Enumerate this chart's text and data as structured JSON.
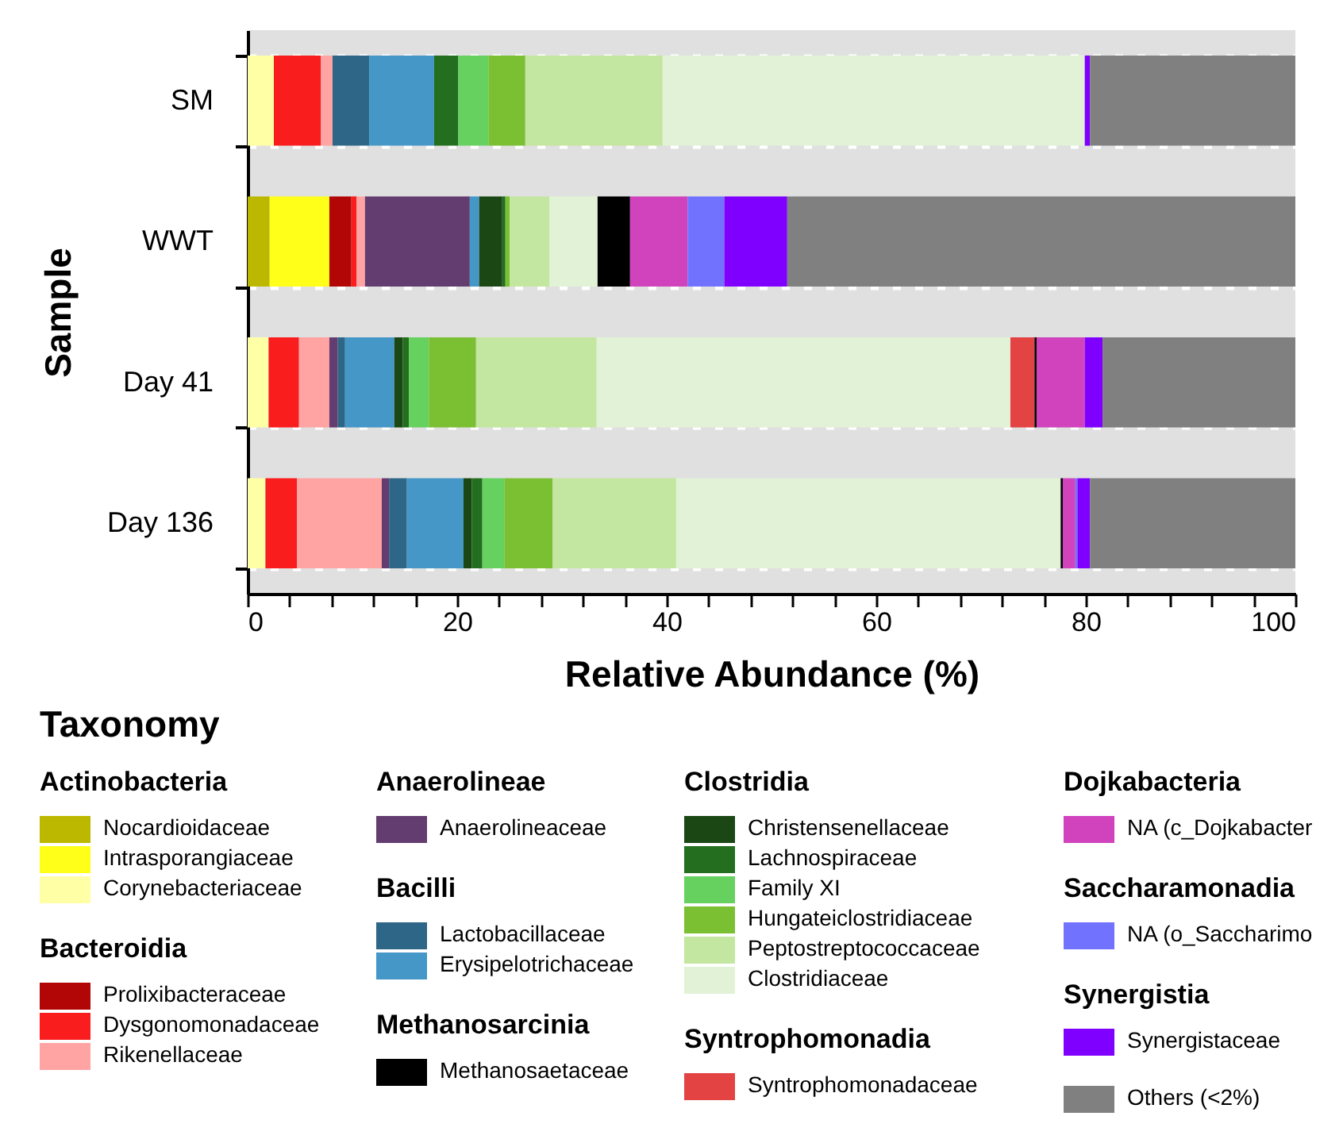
{
  "chart_data": {
    "type": "bar",
    "orientation": "horizontal",
    "stacked": true,
    "xlabel": "Relative Abundance (%)",
    "ylabel": "Sample",
    "legend_title": "Taxonomy",
    "categories": [
      "SM",
      "WWT",
      "Day 41",
      "Day 136"
    ],
    "xlim": [
      0,
      100
    ],
    "xticks": [
      0,
      {
        "value": 4,
        "label": null
      },
      {
        "value": 8,
        "label": null
      },
      {
        "value": 12,
        "label": null
      },
      {
        "value": 16,
        "label": null
      },
      20,
      {
        "value": 24,
        "label": null
      },
      {
        "value": 28,
        "label": null
      },
      {
        "value": 32,
        "label": null
      },
      {
        "value": 36,
        "label": null
      },
      40,
      {
        "value": 44,
        "label": null
      },
      {
        "value": 48,
        "label": null
      },
      {
        "value": 52,
        "label": null
      },
      {
        "value": 56,
        "label": null
      },
      60,
      {
        "value": 64,
        "label": null
      },
      {
        "value": 68,
        "label": null
      },
      {
        "value": 72,
        "label": null
      },
      {
        "value": 76,
        "label": null
      },
      80,
      {
        "value": 84,
        "label": null
      },
      {
        "value": 88,
        "label": null
      },
      {
        "value": 92,
        "label": null
      },
      {
        "value": 96,
        "label": null
      },
      100
    ],
    "grid": "y",
    "legend": "bottom",
    "annotations": [
      "Actinobacteria",
      "Bacteroidia",
      "Anaerolineae",
      "Bacilli",
      "Methanosarcinia",
      "Clostridia",
      "Syntrophomonadia",
      "Dojkabacteria",
      "Saccharamonadia",
      "Synergistia"
    ],
    "series": [
      {
        "name": "Nocardioidaceae",
        "color": "#bcb800",
        "values": [
          null,
          2.1,
          null,
          null
        ]
      },
      {
        "name": "Intrasporangiaceae",
        "color": "#ffff1a",
        "values": [
          null,
          5.7,
          null,
          null
        ]
      },
      {
        "name": "Corynebacteriaceae",
        "color": "#ffffa6",
        "values": [
          2.5,
          null,
          2.0,
          1.7
        ]
      },
      {
        "name": "Prolixibacteraceae",
        "color": "#b20606",
        "values": [
          null,
          2.1,
          null,
          null
        ]
      },
      {
        "name": "Dysgonomonadaceae",
        "color": "#f91d1d",
        "values": [
          4.5,
          0.5,
          2.9,
          3.0
        ]
      },
      {
        "name": "Rikenellaceae",
        "color": "#ffa3a3",
        "values": [
          1.1,
          0.8,
          2.9,
          8.1
        ]
      },
      {
        "name": "Anaerolineaceae",
        "color": "#633c70",
        "values": [
          null,
          10.0,
          0.8,
          0.7
        ]
      },
      {
        "name": "Lactobacillaceae",
        "color": "#2d6687",
        "values": [
          3.5,
          null,
          0.7,
          1.7
        ]
      },
      {
        "name": "Erysipelotrichaceae",
        "color": "#4597c7",
        "values": [
          6.2,
          0.9,
          4.7,
          5.4
        ]
      },
      {
        "name": "Christensenellaceae",
        "color": "#1a4714",
        "values": [
          null,
          2.2,
          0.8,
          0.8
        ]
      },
      {
        "name": "Lachnospiraceae",
        "color": "#236e1f",
        "values": [
          2.3,
          0.3,
          0.6,
          1.0
        ]
      },
      {
        "name": "Family XI",
        "color": "#66d15e",
        "values": [
          2.9,
          null,
          1.9,
          2.1
        ]
      },
      {
        "name": "Hungateiclostridiaceae",
        "color": "#7bc033",
        "values": [
          3.5,
          0.4,
          4.5,
          4.6
        ]
      },
      {
        "name": "Peptostreptococcaceae",
        "color": "#c3e6a0",
        "values": [
          13.1,
          3.8,
          11.5,
          11.8
        ]
      },
      {
        "name": "Clostridiaceae",
        "color": "#e2f2d6",
        "values": [
          40.3,
          4.6,
          39.5,
          36.7
        ]
      },
      {
        "name": "Syntrophomonadaceae",
        "color": "#e34342",
        "values": [
          null,
          null,
          2.3,
          null
        ]
      },
      {
        "name": "Methanosaetaceae",
        "color": "#000000",
        "values": [
          null,
          3.1,
          0.2,
          0.2
        ]
      },
      {
        "name": "NA (c_Dojkabacter",
        "color": "#d043bd",
        "values": [
          null,
          5.5,
          4.6,
          1.2
        ]
      },
      {
        "name": "NA (o_Saccharimo",
        "color": "#7173ff",
        "values": [
          null,
          3.5,
          null,
          0.2
        ]
      },
      {
        "name": "Synergistaceae",
        "color": "#8000ff",
        "values": [
          0.5,
          6.0,
          1.7,
          1.2
        ]
      },
      {
        "name": "Others (<2%)",
        "color": "#808080",
        "values": [
          19.6,
          48.5,
          18.4,
          19.6
        ]
      }
    ]
  }
}
